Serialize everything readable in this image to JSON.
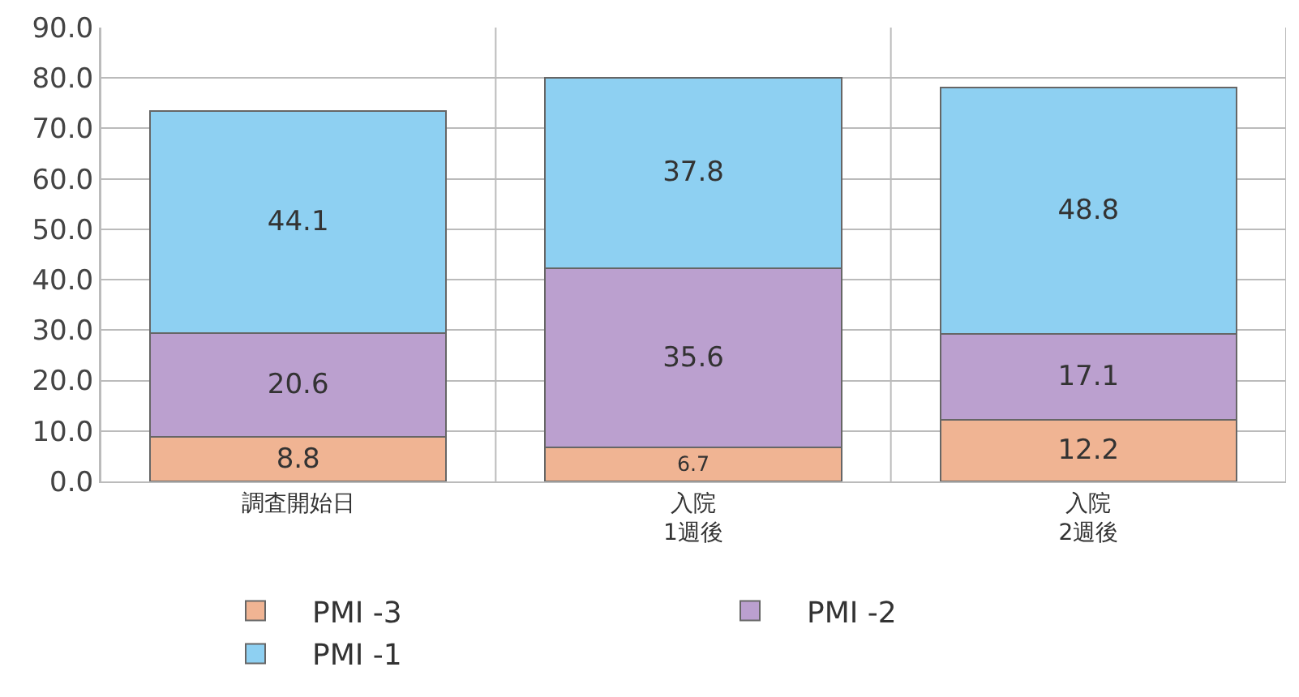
{
  "chart_data": {
    "type": "bar",
    "stacked": true,
    "categories": [
      "調査開始日",
      "入院\n1週後",
      "入院\n2週後"
    ],
    "series": [
      {
        "name": "PMI -3",
        "color": "#f0b493",
        "values": [
          8.8,
          6.7,
          12.2
        ]
      },
      {
        "name": "PMI -2",
        "color": "#bba0cf",
        "values": [
          20.6,
          35.6,
          17.1
        ]
      },
      {
        "name": "PMI -1",
        "color": "#8ed0f2",
        "values": [
          44.1,
          37.8,
          48.8
        ]
      }
    ],
    "ylim": [
      0,
      90
    ],
    "yticks": [
      {
        "value": 0,
        "label": "0.0"
      },
      {
        "value": 10,
        "label": "10.0"
      },
      {
        "value": 20,
        "label": "20.0"
      },
      {
        "value": 30,
        "label": "30.0"
      },
      {
        "value": 40,
        "label": "40.0"
      },
      {
        "value": 50,
        "label": "50.0"
      },
      {
        "value": 60,
        "label": "60.0"
      },
      {
        "value": 70,
        "label": "70.0"
      },
      {
        "value": 80,
        "label": "80.0"
      },
      {
        "value": 90,
        "label": "90.0"
      }
    ],
    "grid": true,
    "legend": "bottom",
    "data_labels": true
  }
}
